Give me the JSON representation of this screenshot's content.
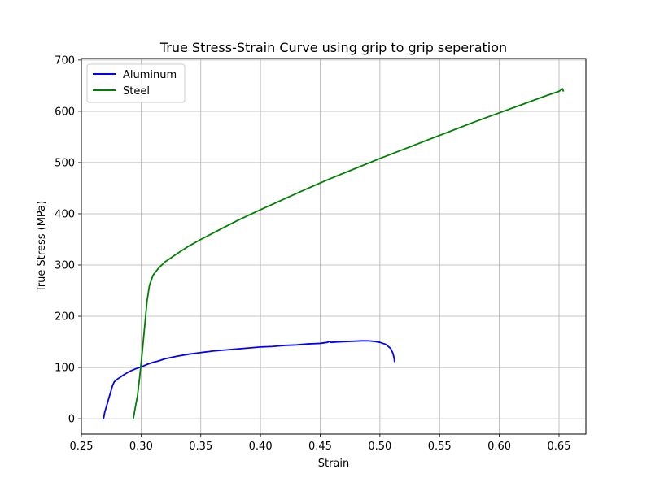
{
  "chart_data": {
    "type": "line",
    "title": "True Stress-Strain Curve using grip to grip seperation",
    "xlabel": "Strain",
    "ylabel": "True Stress (MPa)",
    "xlim": [
      0.25,
      0.6725
    ],
    "ylim": [
      -30,
      703
    ],
    "xticks": [
      0.25,
      0.3,
      0.35,
      0.4,
      0.45,
      0.5,
      0.55,
      0.6,
      0.65
    ],
    "xtick_labels": [
      "0.25",
      "0.30",
      "0.35",
      "0.40",
      "0.45",
      "0.50",
      "0.55",
      "0.60",
      "0.65"
    ],
    "yticks": [
      0,
      100,
      200,
      300,
      400,
      500,
      600,
      700
    ],
    "ytick_labels": [
      "0",
      "100",
      "200",
      "300",
      "400",
      "500",
      "600",
      "700"
    ],
    "grid": true,
    "legend_position": "top-left",
    "series": [
      {
        "name": "Aluminum",
        "color": "#0000ff",
        "points": [
          [
            0.2685,
            0
          ],
          [
            0.2688,
            3
          ],
          [
            0.2695,
            12
          ],
          [
            0.2705,
            20
          ],
          [
            0.2715,
            28
          ],
          [
            0.273,
            40
          ],
          [
            0.2745,
            52
          ],
          [
            0.276,
            64
          ],
          [
            0.2775,
            72
          ],
          [
            0.28,
            77
          ],
          [
            0.285,
            85
          ],
          [
            0.29,
            92
          ],
          [
            0.295,
            97
          ],
          [
            0.3,
            101
          ],
          [
            0.305,
            106
          ],
          [
            0.31,
            110
          ],
          [
            0.315,
            113
          ],
          [
            0.32,
            117
          ],
          [
            0.33,
            122
          ],
          [
            0.34,
            126
          ],
          [
            0.35,
            129
          ],
          [
            0.36,
            132
          ],
          [
            0.37,
            134
          ],
          [
            0.38,
            136
          ],
          [
            0.39,
            138
          ],
          [
            0.4,
            140
          ],
          [
            0.41,
            141
          ],
          [
            0.42,
            143
          ],
          [
            0.43,
            144
          ],
          [
            0.44,
            146
          ],
          [
            0.45,
            147
          ],
          [
            0.456,
            149
          ],
          [
            0.458,
            151
          ],
          [
            0.459,
            149
          ],
          [
            0.465,
            150
          ],
          [
            0.475,
            151
          ],
          [
            0.485,
            152
          ],
          [
            0.49,
            152
          ],
          [
            0.495,
            151
          ],
          [
            0.5,
            149
          ],
          [
            0.505,
            145
          ],
          [
            0.509,
            137
          ],
          [
            0.511,
            127
          ],
          [
            0.512,
            117
          ],
          [
            0.5122,
            112
          ]
        ]
      },
      {
        "name": "Steel",
        "color": "#008000",
        "points": [
          [
            0.2935,
            0
          ],
          [
            0.295,
            20
          ],
          [
            0.297,
            45
          ],
          [
            0.299,
            85
          ],
          [
            0.301,
            130
          ],
          [
            0.303,
            180
          ],
          [
            0.305,
            230
          ],
          [
            0.307,
            260
          ],
          [
            0.31,
            280
          ],
          [
            0.315,
            295
          ],
          [
            0.32,
            306
          ],
          [
            0.33,
            322
          ],
          [
            0.34,
            337
          ],
          [
            0.35,
            350
          ],
          [
            0.36,
            362
          ],
          [
            0.37,
            374
          ],
          [
            0.38,
            386
          ],
          [
            0.39,
            397
          ],
          [
            0.4,
            408
          ],
          [
            0.42,
            429
          ],
          [
            0.44,
            450
          ],
          [
            0.46,
            470
          ],
          [
            0.48,
            489
          ],
          [
            0.5,
            508
          ],
          [
            0.52,
            526
          ],
          [
            0.54,
            544
          ],
          [
            0.56,
            562
          ],
          [
            0.58,
            580
          ],
          [
            0.6,
            597
          ],
          [
            0.62,
            614
          ],
          [
            0.64,
            631
          ],
          [
            0.65,
            639
          ],
          [
            0.653,
            644
          ],
          [
            0.6535,
            640
          ]
        ]
      }
    ]
  }
}
